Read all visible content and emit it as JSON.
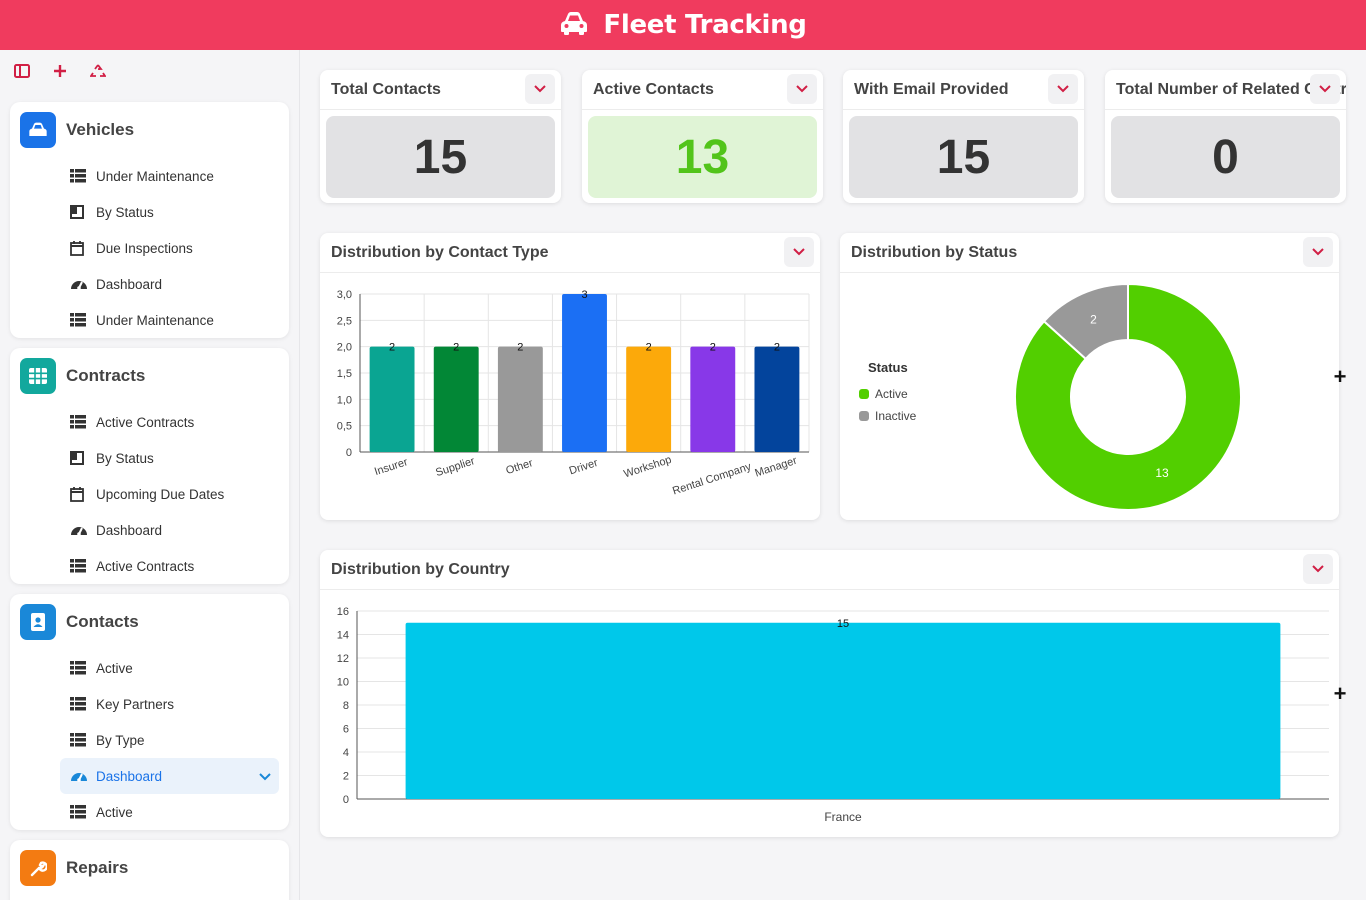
{
  "app": {
    "title": "Fleet Tracking"
  },
  "sidebar": {
    "groups": [
      {
        "title": "Vehicles",
        "color": "#1a73e8",
        "items": [
          {
            "label": "Under Maintenance",
            "icon": "table-icon"
          },
          {
            "label": "By Status",
            "icon": "kanban-icon"
          },
          {
            "label": "Due Inspections",
            "icon": "calendar-icon"
          },
          {
            "label": "Dashboard",
            "icon": "gauge-icon"
          },
          {
            "label": "Under Maintenance",
            "icon": "table-icon"
          }
        ]
      },
      {
        "title": "Contracts",
        "color": "#12a89d",
        "items": [
          {
            "label": "Active Contracts",
            "icon": "table-icon"
          },
          {
            "label": "By Status",
            "icon": "kanban-icon"
          },
          {
            "label": "Upcoming Due Dates",
            "icon": "calendar-icon"
          },
          {
            "label": "Dashboard",
            "icon": "gauge-icon"
          },
          {
            "label": "Active Contracts",
            "icon": "table-icon"
          }
        ]
      },
      {
        "title": "Contacts",
        "color": "#1a88d8",
        "items": [
          {
            "label": "Active",
            "icon": "table-icon"
          },
          {
            "label": "Key Partners",
            "icon": "table-icon"
          },
          {
            "label": "By Type",
            "icon": "table-icon"
          },
          {
            "label": "Dashboard",
            "icon": "gauge-icon",
            "active": true
          },
          {
            "label": "Active",
            "icon": "table-icon"
          }
        ]
      },
      {
        "title": "Repairs",
        "color": "#f37b12",
        "items": []
      }
    ]
  },
  "kpis": [
    {
      "title": "Total Contacts",
      "value": "15"
    },
    {
      "title": "Active Contacts",
      "value": "13"
    },
    {
      "title": "With Email Provided",
      "value": "15"
    },
    {
      "title": "Total Number of Related Contracts",
      "value": "0"
    }
  ],
  "charts": {
    "contact_type_title": "Distribution by Contact Type",
    "status_title": "Distribution by Status",
    "country_title": "Distribution by Country"
  },
  "chart_data": [
    {
      "type": "bar",
      "title": "Distribution by Contact Type",
      "categories": [
        "Insurer",
        "Supplier",
        "Other",
        "Driver",
        "Workshop",
        "Rental Company",
        "Manager"
      ],
      "values": [
        2,
        2,
        2,
        3,
        2,
        2,
        2
      ],
      "colors": [
        "#0aa592",
        "#028736",
        "#999999",
        "#1b6ff4",
        "#fca90a",
        "#8838e8",
        "#03449c"
      ],
      "ylim": [
        0,
        3
      ],
      "yticks": [
        "0",
        "0,5",
        "1,0",
        "1,5",
        "2,0",
        "2,5",
        "3,0"
      ]
    },
    {
      "type": "pie",
      "title": "Distribution by Status",
      "legend_title": "Status",
      "legend_position": "left",
      "labels": [
        "Active",
        "Inactive"
      ],
      "values": [
        13,
        2
      ],
      "colors": [
        "#52cf00",
        "#999999"
      ]
    },
    {
      "type": "bar",
      "title": "Distribution by Country",
      "categories": [
        "France"
      ],
      "values": [
        15
      ],
      "colors": [
        "#00c8ea"
      ],
      "ylim": [
        0,
        16
      ],
      "yticks": [
        "0",
        "2",
        "4",
        "6",
        "8",
        "10",
        "12",
        "14",
        "16"
      ]
    }
  ]
}
